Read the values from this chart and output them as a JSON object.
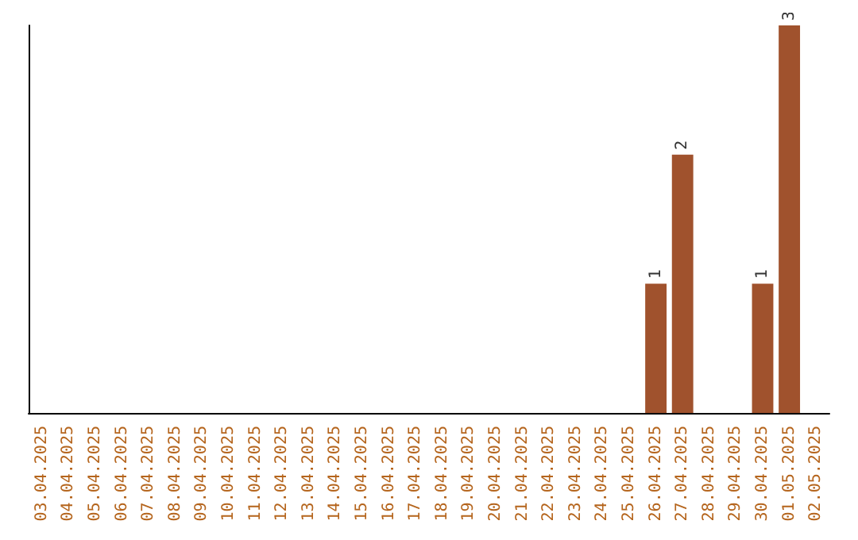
{
  "chart_data": {
    "type": "bar",
    "categories": [
      "03.04.2025",
      "04.04.2025",
      "05.04.2025",
      "06.04.2025",
      "07.04.2025",
      "08.04.2025",
      "09.04.2025",
      "10.04.2025",
      "11.04.2025",
      "12.04.2025",
      "13.04.2025",
      "14.04.2025",
      "15.04.2025",
      "16.04.2025",
      "17.04.2025",
      "18.04.2025",
      "19.04.2025",
      "20.04.2025",
      "21.04.2025",
      "22.04.2025",
      "23.04.2025",
      "24.04.2025",
      "25.04.2025",
      "26.04.2025",
      "27.04.2025",
      "28.04.2025",
      "29.04.2025",
      "30.04.2025",
      "01.05.2025",
      "02.05.2025"
    ],
    "values": [
      null,
      null,
      null,
      null,
      null,
      null,
      null,
      null,
      null,
      null,
      null,
      null,
      null,
      null,
      null,
      null,
      null,
      null,
      null,
      null,
      null,
      null,
      null,
      1,
      2,
      null,
      null,
      1,
      3,
      null
    ],
    "color": "#a0522d",
    "data_labels": true,
    "tick_labels": "x"
  }
}
